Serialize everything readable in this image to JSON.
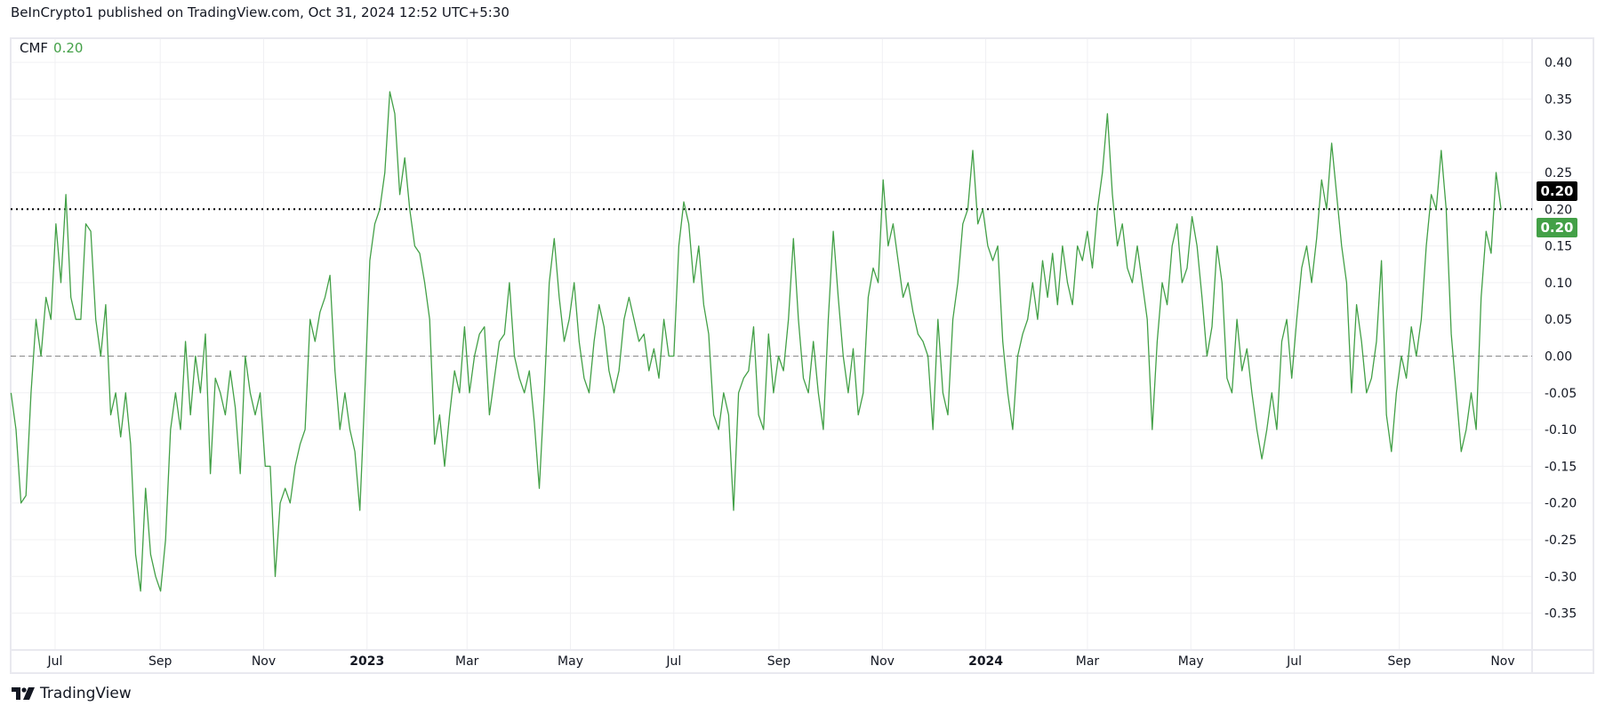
{
  "header": {
    "text": "BeInCrypto1 published on TradingView.com, Oct 31, 2024 12:52 UTC+5:30"
  },
  "legend": {
    "name": "CMF",
    "value": "0.20"
  },
  "badges": {
    "last_value_black": "0.20",
    "last_value_green": "0.20"
  },
  "footer": {
    "brand": "TradingView"
  },
  "colors": {
    "line": "#43a047",
    "badge_black": "#000000",
    "badge_green": "#43a047",
    "grid": "#f0f0f3"
  },
  "chart_data": {
    "type": "line",
    "title": "CMF",
    "series": [
      {
        "name": "CMF",
        "start_date": "2022-06-05",
        "end_date": "2024-10-31",
        "values": [
          -0.05,
          -0.1,
          -0.2,
          -0.19,
          -0.05,
          0.05,
          0.0,
          0.08,
          0.05,
          0.18,
          0.1,
          0.22,
          0.08,
          0.05,
          0.05,
          0.18,
          0.17,
          0.05,
          0.0,
          0.07,
          -0.08,
          -0.05,
          -0.11,
          -0.05,
          -0.12,
          -0.27,
          -0.32,
          -0.18,
          -0.27,
          -0.3,
          -0.32,
          -0.25,
          -0.1,
          -0.05,
          -0.1,
          0.02,
          -0.08,
          0.0,
          -0.05,
          0.03,
          -0.16,
          -0.03,
          -0.05,
          -0.08,
          -0.02,
          -0.07,
          -0.16,
          0.0,
          -0.05,
          -0.08,
          -0.05,
          -0.15,
          -0.15,
          -0.3,
          -0.2,
          -0.18,
          -0.2,
          -0.15,
          -0.12,
          -0.1,
          0.05,
          0.02,
          0.06,
          0.08,
          0.11,
          -0.02,
          -0.1,
          -0.05,
          -0.1,
          -0.13,
          -0.21,
          -0.05,
          0.13,
          0.18,
          0.2,
          0.25,
          0.36,
          0.33,
          0.22,
          0.27,
          0.2,
          0.15,
          0.14,
          0.1,
          0.05,
          -0.12,
          -0.08,
          -0.15,
          -0.08,
          -0.02,
          -0.05,
          0.04,
          -0.05,
          0.0,
          0.03,
          0.04,
          -0.08,
          -0.03,
          0.02,
          0.03,
          0.1,
          0.0,
          -0.03,
          -0.05,
          -0.02,
          -0.09,
          -0.18,
          -0.05,
          0.1,
          0.16,
          0.08,
          0.02,
          0.05,
          0.1,
          0.02,
          -0.03,
          -0.05,
          0.02,
          0.07,
          0.04,
          -0.02,
          -0.05,
          -0.02,
          0.05,
          0.08,
          0.05,
          0.02,
          0.03,
          -0.02,
          0.01,
          -0.03,
          0.05,
          0.0,
          0.0,
          0.15,
          0.21,
          0.18,
          0.1,
          0.15,
          0.07,
          0.03,
          -0.08,
          -0.1,
          -0.05,
          -0.08,
          -0.21,
          -0.05,
          -0.03,
          -0.02,
          0.04,
          -0.08,
          -0.1,
          0.03,
          -0.05,
          0.0,
          -0.02,
          0.05,
          0.16,
          0.05,
          -0.03,
          -0.05,
          0.02,
          -0.05,
          -0.1,
          0.05,
          0.17,
          0.08,
          0.0,
          -0.05,
          0.01,
          -0.08,
          -0.05,
          0.08,
          0.12,
          0.1,
          0.24,
          0.15,
          0.18,
          0.13,
          0.08,
          0.1,
          0.06,
          0.03,
          0.02,
          0.0,
          -0.1,
          0.05,
          -0.05,
          -0.08,
          0.05,
          0.1,
          0.18,
          0.2,
          0.28,
          0.18,
          0.2,
          0.15,
          0.13,
          0.15,
          0.02,
          -0.05,
          -0.1,
          0.0,
          0.03,
          0.05,
          0.1,
          0.05,
          0.13,
          0.08,
          0.14,
          0.07,
          0.15,
          0.1,
          0.07,
          0.15,
          0.13,
          0.17,
          0.12,
          0.2,
          0.25,
          0.33,
          0.22,
          0.15,
          0.18,
          0.12,
          0.1,
          0.15,
          0.1,
          0.05,
          -0.1,
          0.02,
          0.1,
          0.07,
          0.15,
          0.18,
          0.1,
          0.12,
          0.19,
          0.15,
          0.08,
          0.0,
          0.04,
          0.15,
          0.1,
          -0.03,
          -0.05,
          0.05,
          -0.02,
          0.01,
          -0.05,
          -0.1,
          -0.14,
          -0.1,
          -0.05,
          -0.1,
          0.02,
          0.05,
          -0.03,
          0.05,
          0.12,
          0.15,
          0.1,
          0.16,
          0.24,
          0.2,
          0.29,
          0.22,
          0.15,
          0.1,
          -0.05,
          0.07,
          0.02,
          -0.05,
          -0.03,
          0.02,
          0.13,
          -0.08,
          -0.13,
          -0.05,
          0.0,
          -0.03,
          0.04,
          0.0,
          0.05,
          0.15,
          0.22,
          0.2,
          0.28,
          0.2,
          0.03,
          -0.05,
          -0.13,
          -0.1,
          -0.05,
          -0.1,
          0.08,
          0.17,
          0.14,
          0.25,
          0.2
        ]
      }
    ],
    "y_ticks": [
      "0.40",
      "0.35",
      "0.30",
      "0.25",
      "0.20",
      "0.15",
      "0.10",
      "0.05",
      "0.00",
      "-0.05",
      "-0.10",
      "-0.15",
      "-0.20",
      "-0.25",
      "-0.30",
      "-0.35"
    ],
    "ylim": [
      -0.39,
      0.45
    ],
    "x_ticks": [
      {
        "label": "Jul",
        "date": "2022-07-01"
      },
      {
        "label": "Sep",
        "date": "2022-09-01"
      },
      {
        "label": "Nov",
        "date": "2022-11-01"
      },
      {
        "label": "2023",
        "date": "2023-01-01",
        "bold": true
      },
      {
        "label": "Mar",
        "date": "2023-03-01"
      },
      {
        "label": "May",
        "date": "2023-05-01"
      },
      {
        "label": "Jul",
        "date": "2023-07-01"
      },
      {
        "label": "Sep",
        "date": "2023-09-01"
      },
      {
        "label": "Nov",
        "date": "2023-11-01"
      },
      {
        "label": "2024",
        "date": "2024-01-01",
        "bold": true
      },
      {
        "label": "Mar",
        "date": "2024-03-01"
      },
      {
        "label": "May",
        "date": "2024-05-01"
      },
      {
        "label": "Jul",
        "date": "2024-07-01"
      },
      {
        "label": "Sep",
        "date": "2024-09-01"
      },
      {
        "label": "Nov",
        "date": "2024-11-01"
      }
    ],
    "reference_lines": [
      {
        "value": 0.0,
        "style": "dashed"
      },
      {
        "value": 0.2,
        "style": "dotted"
      }
    ],
    "grid": true,
    "legend": "top-left"
  }
}
